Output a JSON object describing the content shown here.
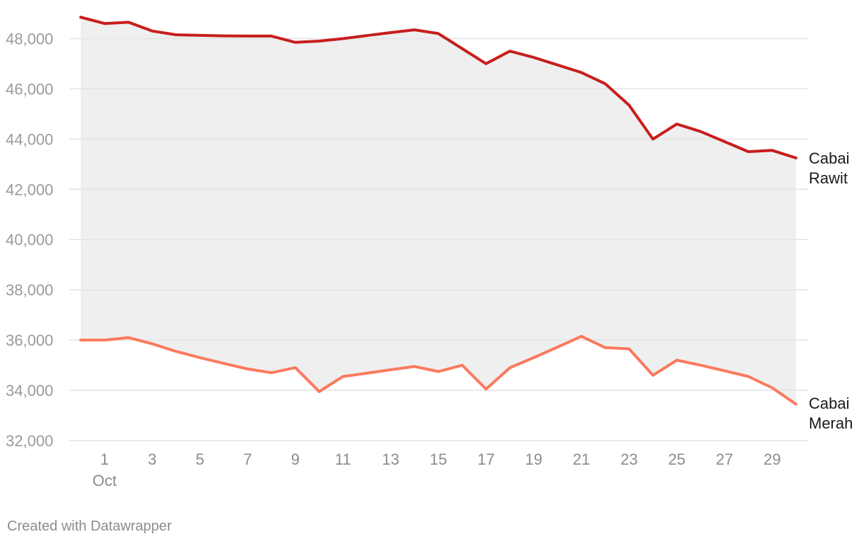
{
  "chart_data": {
    "type": "line",
    "title": "",
    "xlabel": "",
    "ylabel": "",
    "x_month_label": "Oct",
    "x": [
      0,
      1,
      2,
      3,
      4,
      5,
      6,
      7,
      8,
      9,
      10,
      11,
      12,
      13,
      14,
      15,
      16,
      17,
      18,
      19,
      20,
      21,
      22,
      23,
      24,
      25,
      26,
      27,
      28,
      29,
      30
    ],
    "x_ticks": [
      1,
      3,
      5,
      7,
      9,
      11,
      13,
      15,
      17,
      19,
      21,
      23,
      25,
      27,
      29
    ],
    "ylim": [
      32000,
      49000
    ],
    "y_ticks": [
      32000,
      34000,
      36000,
      38000,
      40000,
      42000,
      44000,
      46000,
      48000
    ],
    "y_tick_labels": [
      "32,000",
      "34,000",
      "36,000",
      "38,000",
      "40,000",
      "42,000",
      "44,000",
      "46,000",
      "48,000"
    ],
    "grid": true,
    "area_between_series": true,
    "series": [
      {
        "name": "Cabai Rawit",
        "label_lines": [
          "Cabai",
          "Rawit"
        ],
        "color": "#c71e1d",
        "values": [
          48850,
          48600,
          48650,
          48300,
          48150,
          48130,
          48110,
          48100,
          48100,
          47850,
          47900,
          48000,
          48120,
          48240,
          48350,
          48200,
          47600,
          47000,
          47500,
          47250,
          46950,
          46650,
          46200,
          45350,
          44000,
          44600,
          44300,
          43900,
          43500,
          43550,
          43250
        ]
      },
      {
        "name": "Cabai Merah",
        "label_lines": [
          "Cabai",
          "Merah"
        ],
        "color": "#fa7a5e",
        "values": [
          36000,
          36000,
          36100,
          35850,
          35550,
          35300,
          35070,
          34850,
          34700,
          34900,
          33950,
          34550,
          34680,
          34820,
          34950,
          34750,
          35000,
          34050,
          34900,
          35300,
          35720,
          36150,
          35700,
          35650,
          34600,
          35200,
          35000,
          34780,
          34550,
          34100,
          33450
        ]
      }
    ],
    "area_color": "#efefef",
    "grid_color": "#e3e3e3",
    "credit": "Created with Datawrapper"
  }
}
